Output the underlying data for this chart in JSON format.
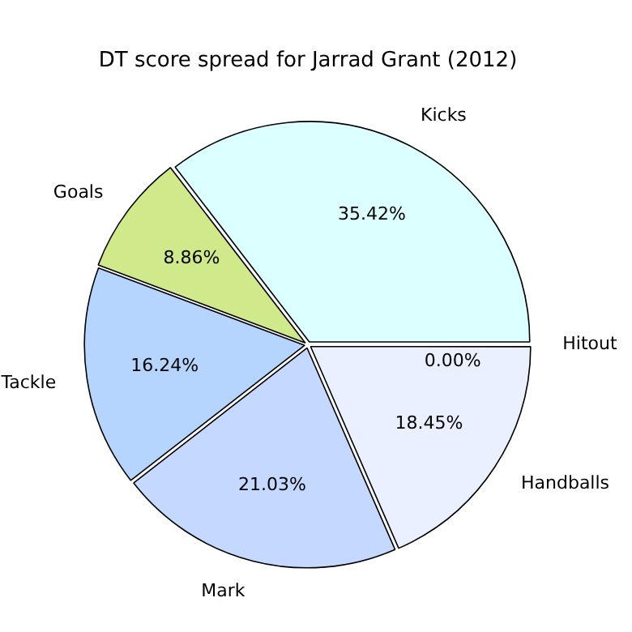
{
  "chart_data": {
    "type": "pie",
    "title": "DT score spread for Jarrad Grant (2012)",
    "categories": [
      "Handballs",
      "Mark",
      "Tackle",
      "Goals",
      "Kicks",
      "Hitout"
    ],
    "values": [
      18.45,
      21.03,
      16.24,
      8.86,
      35.42,
      0.0
    ],
    "colors": [
      "#eaf0ff",
      "#c5d8ff",
      "#b5d5ff",
      "#d0e98a",
      "#dcffff",
      "#ffffff"
    ],
    "value_labels": [
      "18.45%",
      "21.03%",
      "16.24%",
      "8.86%",
      "35.42%",
      "0.00%"
    ],
    "legend": false
  }
}
